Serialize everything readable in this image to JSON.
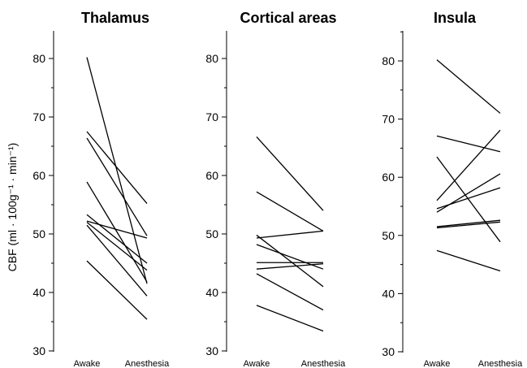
{
  "chart_data": {
    "type": "line",
    "ylabel": "CBF (ml · 100g⁻¹ · min⁻¹)",
    "categories": [
      "Awake",
      "Anesthesia"
    ],
    "ylim": [
      30,
      85
    ],
    "yticks": [
      30,
      40,
      50,
      60,
      70,
      80
    ],
    "panels": [
      {
        "title": "Thalamus",
        "series": [
          {
            "values": [
              80.2,
              41.5
            ]
          },
          {
            "values": [
              67.5,
              55.2
            ]
          },
          {
            "values": [
              66.4,
              49.7
            ]
          },
          {
            "values": [
              58.9,
              41.8
            ]
          },
          {
            "values": [
              53.3,
              45.0
            ]
          },
          {
            "values": [
              52.2,
              49.3
            ]
          },
          {
            "values": [
              52.0,
              43.8
            ]
          },
          {
            "values": [
              51.5,
              39.4
            ]
          },
          {
            "values": [
              45.4,
              35.4
            ]
          }
        ]
      },
      {
        "title": "Cortical areas",
        "series": [
          {
            "values": [
              66.6,
              54.0
            ]
          },
          {
            "values": [
              57.2,
              50.5
            ]
          },
          {
            "values": [
              49.3,
              50.5
            ]
          },
          {
            "values": [
              49.8,
              41.0
            ]
          },
          {
            "values": [
              48.2,
              44.0
            ]
          },
          {
            "values": [
              45.1,
              45.1
            ]
          },
          {
            "values": [
              44.0,
              44.9
            ]
          },
          {
            "values": [
              43.2,
              37.0
            ]
          },
          {
            "values": [
              37.8,
              33.4
            ]
          }
        ]
      },
      {
        "title": "Insula",
        "series": [
          {
            "values": [
              80.2,
              71.0
            ]
          },
          {
            "values": [
              67.1,
              64.4
            ]
          },
          {
            "values": [
              63.5,
              48.9
            ]
          },
          {
            "values": [
              56.0,
              68.1
            ]
          },
          {
            "values": [
              54.6,
              58.2
            ]
          },
          {
            "values": [
              54.0,
              60.6
            ]
          },
          {
            "values": [
              51.5,
              52.6
            ]
          },
          {
            "values": [
              51.3,
              52.3
            ]
          },
          {
            "values": [
              47.4,
              43.9
            ]
          }
        ]
      }
    ]
  }
}
